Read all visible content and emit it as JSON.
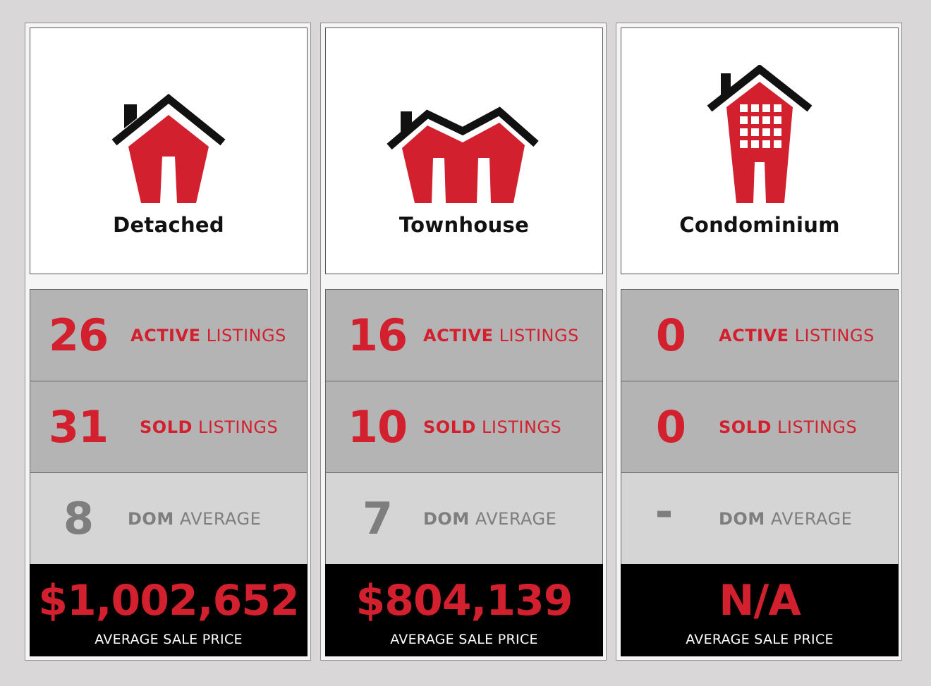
{
  "colors": {
    "accent_red": "#d2202f",
    "roof_black": "#111111",
    "dark_gray": "#b5b4b4",
    "light_gray": "#d6d5d5",
    "muted_text": "#7e7e7e"
  },
  "stat_labels": {
    "active_strong": "ACTIVE",
    "active_rest": "LISTINGS",
    "sold_strong": "SOLD",
    "sold_rest": "LISTINGS",
    "dom_strong": "DOM",
    "dom_rest": "AVERAGE",
    "price_label": "AVERAGE SALE PRICE"
  },
  "cards": [
    {
      "title": "Detached",
      "icon": "detached-house-icon",
      "active": "26",
      "sold": "31",
      "dom": "8",
      "price": "$1,002,652"
    },
    {
      "title": "Townhouse",
      "icon": "townhouse-icon",
      "active": "16",
      "sold": "10",
      "dom": "7",
      "price": "$804,139"
    },
    {
      "title": "Condominium",
      "icon": "condominium-icon",
      "active": "0",
      "sold": "0",
      "dom": "-",
      "price": "N/A"
    }
  ]
}
